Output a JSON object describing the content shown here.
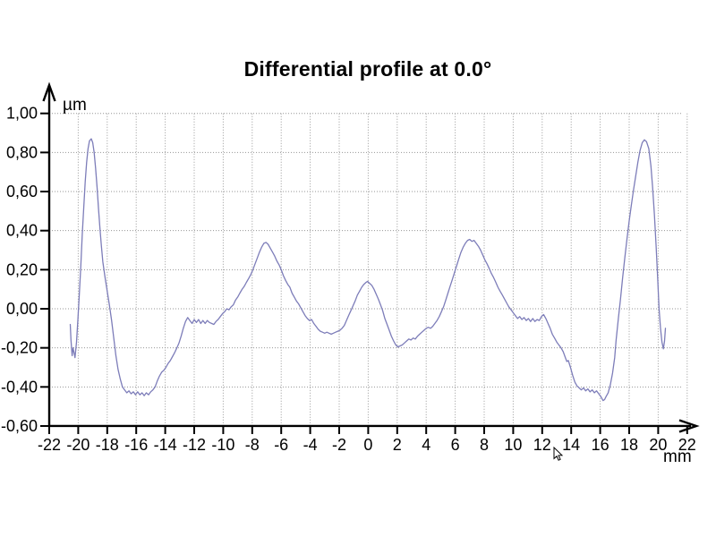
{
  "chart_data": {
    "type": "line",
    "title": "Differential profile at 0.0°",
    "y_unit": "µm",
    "x_unit": "mm",
    "xlim": [
      -22,
      22
    ],
    "ylim": [
      -0.6,
      1.0
    ],
    "x_tick_step": 2,
    "y_tick_step": 0.2,
    "grid": "dotted",
    "legend": "none",
    "x_tick_labels": [
      "-22",
      "-20",
      "-18",
      "-16",
      "-14",
      "-12",
      "-10",
      "-8",
      "-6",
      "-4",
      "-2",
      "0",
      "2",
      "4",
      "6",
      "8",
      "10",
      "12",
      "14",
      "16",
      "18",
      "20",
      "22"
    ],
    "y_tick_labels_top_to_bottom": [
      "1,00",
      "0,80",
      "0,60",
      "0,40",
      "0,20",
      "0,00",
      "-0,20",
      "-0,40",
      "-0,60"
    ],
    "line_color": "#7d7db9",
    "grid_color": "#969696",
    "axis_color": "#000000",
    "series": [
      {
        "name": "differential-profile",
        "points": [
          [
            -20.55,
            -0.08
          ],
          [
            -20.5,
            -0.16
          ],
          [
            -20.42,
            -0.24
          ],
          [
            -20.36,
            -0.2
          ],
          [
            -20.3,
            -0.22
          ],
          [
            -20.22,
            -0.25
          ],
          [
            -20.12,
            -0.17
          ],
          [
            -20.02,
            -0.05
          ],
          [
            -19.92,
            0.08
          ],
          [
            -19.82,
            0.22
          ],
          [
            -19.72,
            0.38
          ],
          [
            -19.62,
            0.52
          ],
          [
            -19.52,
            0.65
          ],
          [
            -19.42,
            0.75
          ],
          [
            -19.32,
            0.82
          ],
          [
            -19.22,
            0.86
          ],
          [
            -19.1,
            0.87
          ],
          [
            -19.0,
            0.85
          ],
          [
            -18.9,
            0.8
          ],
          [
            -18.8,
            0.72
          ],
          [
            -18.7,
            0.62
          ],
          [
            -18.6,
            0.51
          ],
          [
            -18.5,
            0.41
          ],
          [
            -18.4,
            0.32
          ],
          [
            -18.3,
            0.24
          ],
          [
            -18.15,
            0.16
          ],
          [
            -18.0,
            0.09
          ],
          [
            -17.85,
            0.02
          ],
          [
            -17.7,
            -0.06
          ],
          [
            -17.55,
            -0.15
          ],
          [
            -17.4,
            -0.24
          ],
          [
            -17.25,
            -0.31
          ],
          [
            -17.1,
            -0.36
          ],
          [
            -16.95,
            -0.4
          ],
          [
            -16.8,
            -0.415
          ],
          [
            -16.65,
            -0.43
          ],
          [
            -16.5,
            -0.42
          ],
          [
            -16.35,
            -0.435
          ],
          [
            -16.2,
            -0.425
          ],
          [
            -16.05,
            -0.44
          ],
          [
            -15.9,
            -0.425
          ],
          [
            -15.75,
            -0.44
          ],
          [
            -15.6,
            -0.43
          ],
          [
            -15.45,
            -0.445
          ],
          [
            -15.3,
            -0.43
          ],
          [
            -15.15,
            -0.44
          ],
          [
            -15.0,
            -0.425
          ],
          [
            -14.85,
            -0.415
          ],
          [
            -14.7,
            -0.4
          ],
          [
            -14.55,
            -0.37
          ],
          [
            -14.4,
            -0.345
          ],
          [
            -14.25,
            -0.325
          ],
          [
            -14.1,
            -0.315
          ],
          [
            -13.95,
            -0.3
          ],
          [
            -13.8,
            -0.28
          ],
          [
            -13.65,
            -0.265
          ],
          [
            -13.5,
            -0.245
          ],
          [
            -13.35,
            -0.225
          ],
          [
            -13.2,
            -0.2
          ],
          [
            -13.05,
            -0.175
          ],
          [
            -12.9,
            -0.14
          ],
          [
            -12.75,
            -0.1
          ],
          [
            -12.6,
            -0.065
          ],
          [
            -12.45,
            -0.045
          ],
          [
            -12.3,
            -0.06
          ],
          [
            -12.15,
            -0.075
          ],
          [
            -12.0,
            -0.055
          ],
          [
            -11.85,
            -0.07
          ],
          [
            -11.7,
            -0.055
          ],
          [
            -11.55,
            -0.075
          ],
          [
            -11.4,
            -0.06
          ],
          [
            -11.25,
            -0.075
          ],
          [
            -11.1,
            -0.06
          ],
          [
            -10.95,
            -0.07
          ],
          [
            -10.8,
            -0.075
          ],
          [
            -10.65,
            -0.08
          ],
          [
            -10.5,
            -0.065
          ],
          [
            -10.35,
            -0.055
          ],
          [
            -10.2,
            -0.04
          ],
          [
            -10.05,
            -0.025
          ],
          [
            -9.9,
            -0.015
          ],
          [
            -9.75,
            0.0
          ],
          [
            -9.6,
            -0.005
          ],
          [
            -9.45,
            0.01
          ],
          [
            -9.3,
            0.02
          ],
          [
            -9.15,
            0.045
          ],
          [
            -9.0,
            0.06
          ],
          [
            -8.85,
            0.08
          ],
          [
            -8.7,
            0.1
          ],
          [
            -8.55,
            0.115
          ],
          [
            -8.4,
            0.135
          ],
          [
            -8.25,
            0.155
          ],
          [
            -8.1,
            0.175
          ],
          [
            -7.95,
            0.2
          ],
          [
            -7.8,
            0.23
          ],
          [
            -7.65,
            0.26
          ],
          [
            -7.5,
            0.29
          ],
          [
            -7.35,
            0.315
          ],
          [
            -7.2,
            0.335
          ],
          [
            -7.05,
            0.34
          ],
          [
            -6.9,
            0.33
          ],
          [
            -6.75,
            0.31
          ],
          [
            -6.6,
            0.29
          ],
          [
            -6.45,
            0.27
          ],
          [
            -6.3,
            0.245
          ],
          [
            -6.15,
            0.225
          ],
          [
            -6.0,
            0.2
          ],
          [
            -5.85,
            0.17
          ],
          [
            -5.7,
            0.145
          ],
          [
            -5.55,
            0.125
          ],
          [
            -5.4,
            0.11
          ],
          [
            -5.25,
            0.08
          ],
          [
            -5.1,
            0.06
          ],
          [
            -4.95,
            0.04
          ],
          [
            -4.8,
            0.025
          ],
          [
            -4.65,
            0.005
          ],
          [
            -4.5,
            -0.015
          ],
          [
            -4.35,
            -0.035
          ],
          [
            -4.2,
            -0.05
          ],
          [
            -4.05,
            -0.06
          ],
          [
            -3.9,
            -0.055
          ],
          [
            -3.75,
            -0.075
          ],
          [
            -3.6,
            -0.09
          ],
          [
            -3.45,
            -0.105
          ],
          [
            -3.3,
            -0.115
          ],
          [
            -3.15,
            -0.12
          ],
          [
            -3.0,
            -0.125
          ],
          [
            -2.85,
            -0.12
          ],
          [
            -2.7,
            -0.125
          ],
          [
            -2.55,
            -0.13
          ],
          [
            -2.4,
            -0.125
          ],
          [
            -2.25,
            -0.12
          ],
          [
            -2.1,
            -0.115
          ],
          [
            -1.95,
            -0.11
          ],
          [
            -1.8,
            -0.1
          ],
          [
            -1.65,
            -0.085
          ],
          [
            -1.5,
            -0.06
          ],
          [
            -1.35,
            -0.035
          ],
          [
            -1.2,
            -0.01
          ],
          [
            -1.05,
            0.015
          ],
          [
            -0.9,
            0.04
          ],
          [
            -0.75,
            0.07
          ],
          [
            -0.6,
            0.09
          ],
          [
            -0.45,
            0.11
          ],
          [
            -0.3,
            0.125
          ],
          [
            -0.15,
            0.135
          ],
          [
            -0.05,
            0.14
          ],
          [
            0.1,
            0.13
          ],
          [
            0.25,
            0.12
          ],
          [
            0.4,
            0.1
          ],
          [
            0.55,
            0.075
          ],
          [
            0.7,
            0.05
          ],
          [
            0.85,
            0.02
          ],
          [
            1.0,
            -0.01
          ],
          [
            1.15,
            -0.05
          ],
          [
            1.3,
            -0.08
          ],
          [
            1.45,
            -0.11
          ],
          [
            1.6,
            -0.14
          ],
          [
            1.75,
            -0.165
          ],
          [
            1.9,
            -0.185
          ],
          [
            2.05,
            -0.195
          ],
          [
            2.2,
            -0.19
          ],
          [
            2.35,
            -0.185
          ],
          [
            2.5,
            -0.175
          ],
          [
            2.65,
            -0.165
          ],
          [
            2.8,
            -0.155
          ],
          [
            2.95,
            -0.16
          ],
          [
            3.1,
            -0.15
          ],
          [
            3.25,
            -0.155
          ],
          [
            3.4,
            -0.14
          ],
          [
            3.55,
            -0.13
          ],
          [
            3.7,
            -0.12
          ],
          [
            3.85,
            -0.11
          ],
          [
            4.0,
            -0.1
          ],
          [
            4.15,
            -0.095
          ],
          [
            4.3,
            -0.1
          ],
          [
            4.45,
            -0.09
          ],
          [
            4.6,
            -0.075
          ],
          [
            4.75,
            -0.06
          ],
          [
            4.9,
            -0.04
          ],
          [
            5.05,
            -0.015
          ],
          [
            5.2,
            0.01
          ],
          [
            5.35,
            0.045
          ],
          [
            5.5,
            0.08
          ],
          [
            5.65,
            0.115
          ],
          [
            5.8,
            0.15
          ],
          [
            5.95,
            0.185
          ],
          [
            6.1,
            0.22
          ],
          [
            6.25,
            0.255
          ],
          [
            6.4,
            0.29
          ],
          [
            6.55,
            0.315
          ],
          [
            6.7,
            0.335
          ],
          [
            6.85,
            0.35
          ],
          [
            7.0,
            0.355
          ],
          [
            7.15,
            0.345
          ],
          [
            7.3,
            0.35
          ],
          [
            7.45,
            0.335
          ],
          [
            7.6,
            0.32
          ],
          [
            7.75,
            0.3
          ],
          [
            7.9,
            0.275
          ],
          [
            8.05,
            0.25
          ],
          [
            8.2,
            0.23
          ],
          [
            8.35,
            0.205
          ],
          [
            8.5,
            0.18
          ],
          [
            8.65,
            0.16
          ],
          [
            8.8,
            0.135
          ],
          [
            8.95,
            0.11
          ],
          [
            9.1,
            0.09
          ],
          [
            9.25,
            0.07
          ],
          [
            9.4,
            0.05
          ],
          [
            9.55,
            0.03
          ],
          [
            9.7,
            0.01
          ],
          [
            9.85,
            -0.005
          ],
          [
            10.0,
            -0.02
          ],
          [
            10.15,
            -0.035
          ],
          [
            10.3,
            -0.05
          ],
          [
            10.45,
            -0.04
          ],
          [
            10.6,
            -0.055
          ],
          [
            10.75,
            -0.045
          ],
          [
            10.9,
            -0.06
          ],
          [
            11.05,
            -0.05
          ],
          [
            11.2,
            -0.065
          ],
          [
            11.35,
            -0.05
          ],
          [
            11.5,
            -0.065
          ],
          [
            11.65,
            -0.055
          ],
          [
            11.8,
            -0.06
          ],
          [
            11.95,
            -0.04
          ],
          [
            12.1,
            -0.03
          ],
          [
            12.25,
            -0.05
          ],
          [
            12.4,
            -0.075
          ],
          [
            12.55,
            -0.1
          ],
          [
            12.7,
            -0.13
          ],
          [
            12.85,
            -0.15
          ],
          [
            13.0,
            -0.17
          ],
          [
            13.15,
            -0.185
          ],
          [
            13.3,
            -0.2
          ],
          [
            13.45,
            -0.22
          ],
          [
            13.6,
            -0.25
          ],
          [
            13.7,
            -0.27
          ],
          [
            13.8,
            -0.265
          ],
          [
            13.95,
            -0.3
          ],
          [
            14.1,
            -0.34
          ],
          [
            14.25,
            -0.375
          ],
          [
            14.4,
            -0.395
          ],
          [
            14.55,
            -0.405
          ],
          [
            14.7,
            -0.415
          ],
          [
            14.85,
            -0.405
          ],
          [
            15.0,
            -0.42
          ],
          [
            15.15,
            -0.41
          ],
          [
            15.3,
            -0.425
          ],
          [
            15.45,
            -0.415
          ],
          [
            15.6,
            -0.43
          ],
          [
            15.75,
            -0.42
          ],
          [
            15.9,
            -0.435
          ],
          [
            16.05,
            -0.45
          ],
          [
            16.2,
            -0.47
          ],
          [
            16.3,
            -0.465
          ],
          [
            16.4,
            -0.45
          ],
          [
            16.55,
            -0.43
          ],
          [
            16.7,
            -0.39
          ],
          [
            16.85,
            -0.33
          ],
          [
            17.0,
            -0.25
          ],
          [
            17.1,
            -0.16
          ],
          [
            17.25,
            -0.05
          ],
          [
            17.4,
            0.05
          ],
          [
            17.55,
            0.16
          ],
          [
            17.7,
            0.26
          ],
          [
            17.85,
            0.36
          ],
          [
            18.0,
            0.45
          ],
          [
            18.15,
            0.53
          ],
          [
            18.3,
            0.61
          ],
          [
            18.45,
            0.68
          ],
          [
            18.6,
            0.75
          ],
          [
            18.75,
            0.81
          ],
          [
            18.9,
            0.85
          ],
          [
            19.05,
            0.865
          ],
          [
            19.2,
            0.855
          ],
          [
            19.35,
            0.82
          ],
          [
            19.5,
            0.73
          ],
          [
            19.62,
            0.62
          ],
          [
            19.74,
            0.48
          ],
          [
            19.86,
            0.32
          ],
          [
            19.96,
            0.16
          ],
          [
            20.06,
            0.0
          ],
          [
            20.16,
            -0.1
          ],
          [
            20.26,
            -0.17
          ],
          [
            20.36,
            -0.205
          ],
          [
            20.44,
            -0.165
          ],
          [
            20.5,
            -0.1
          ]
        ]
      }
    ]
  },
  "mouse_cursor": {
    "present": true,
    "location_hint": "below x-axis label 12"
  }
}
